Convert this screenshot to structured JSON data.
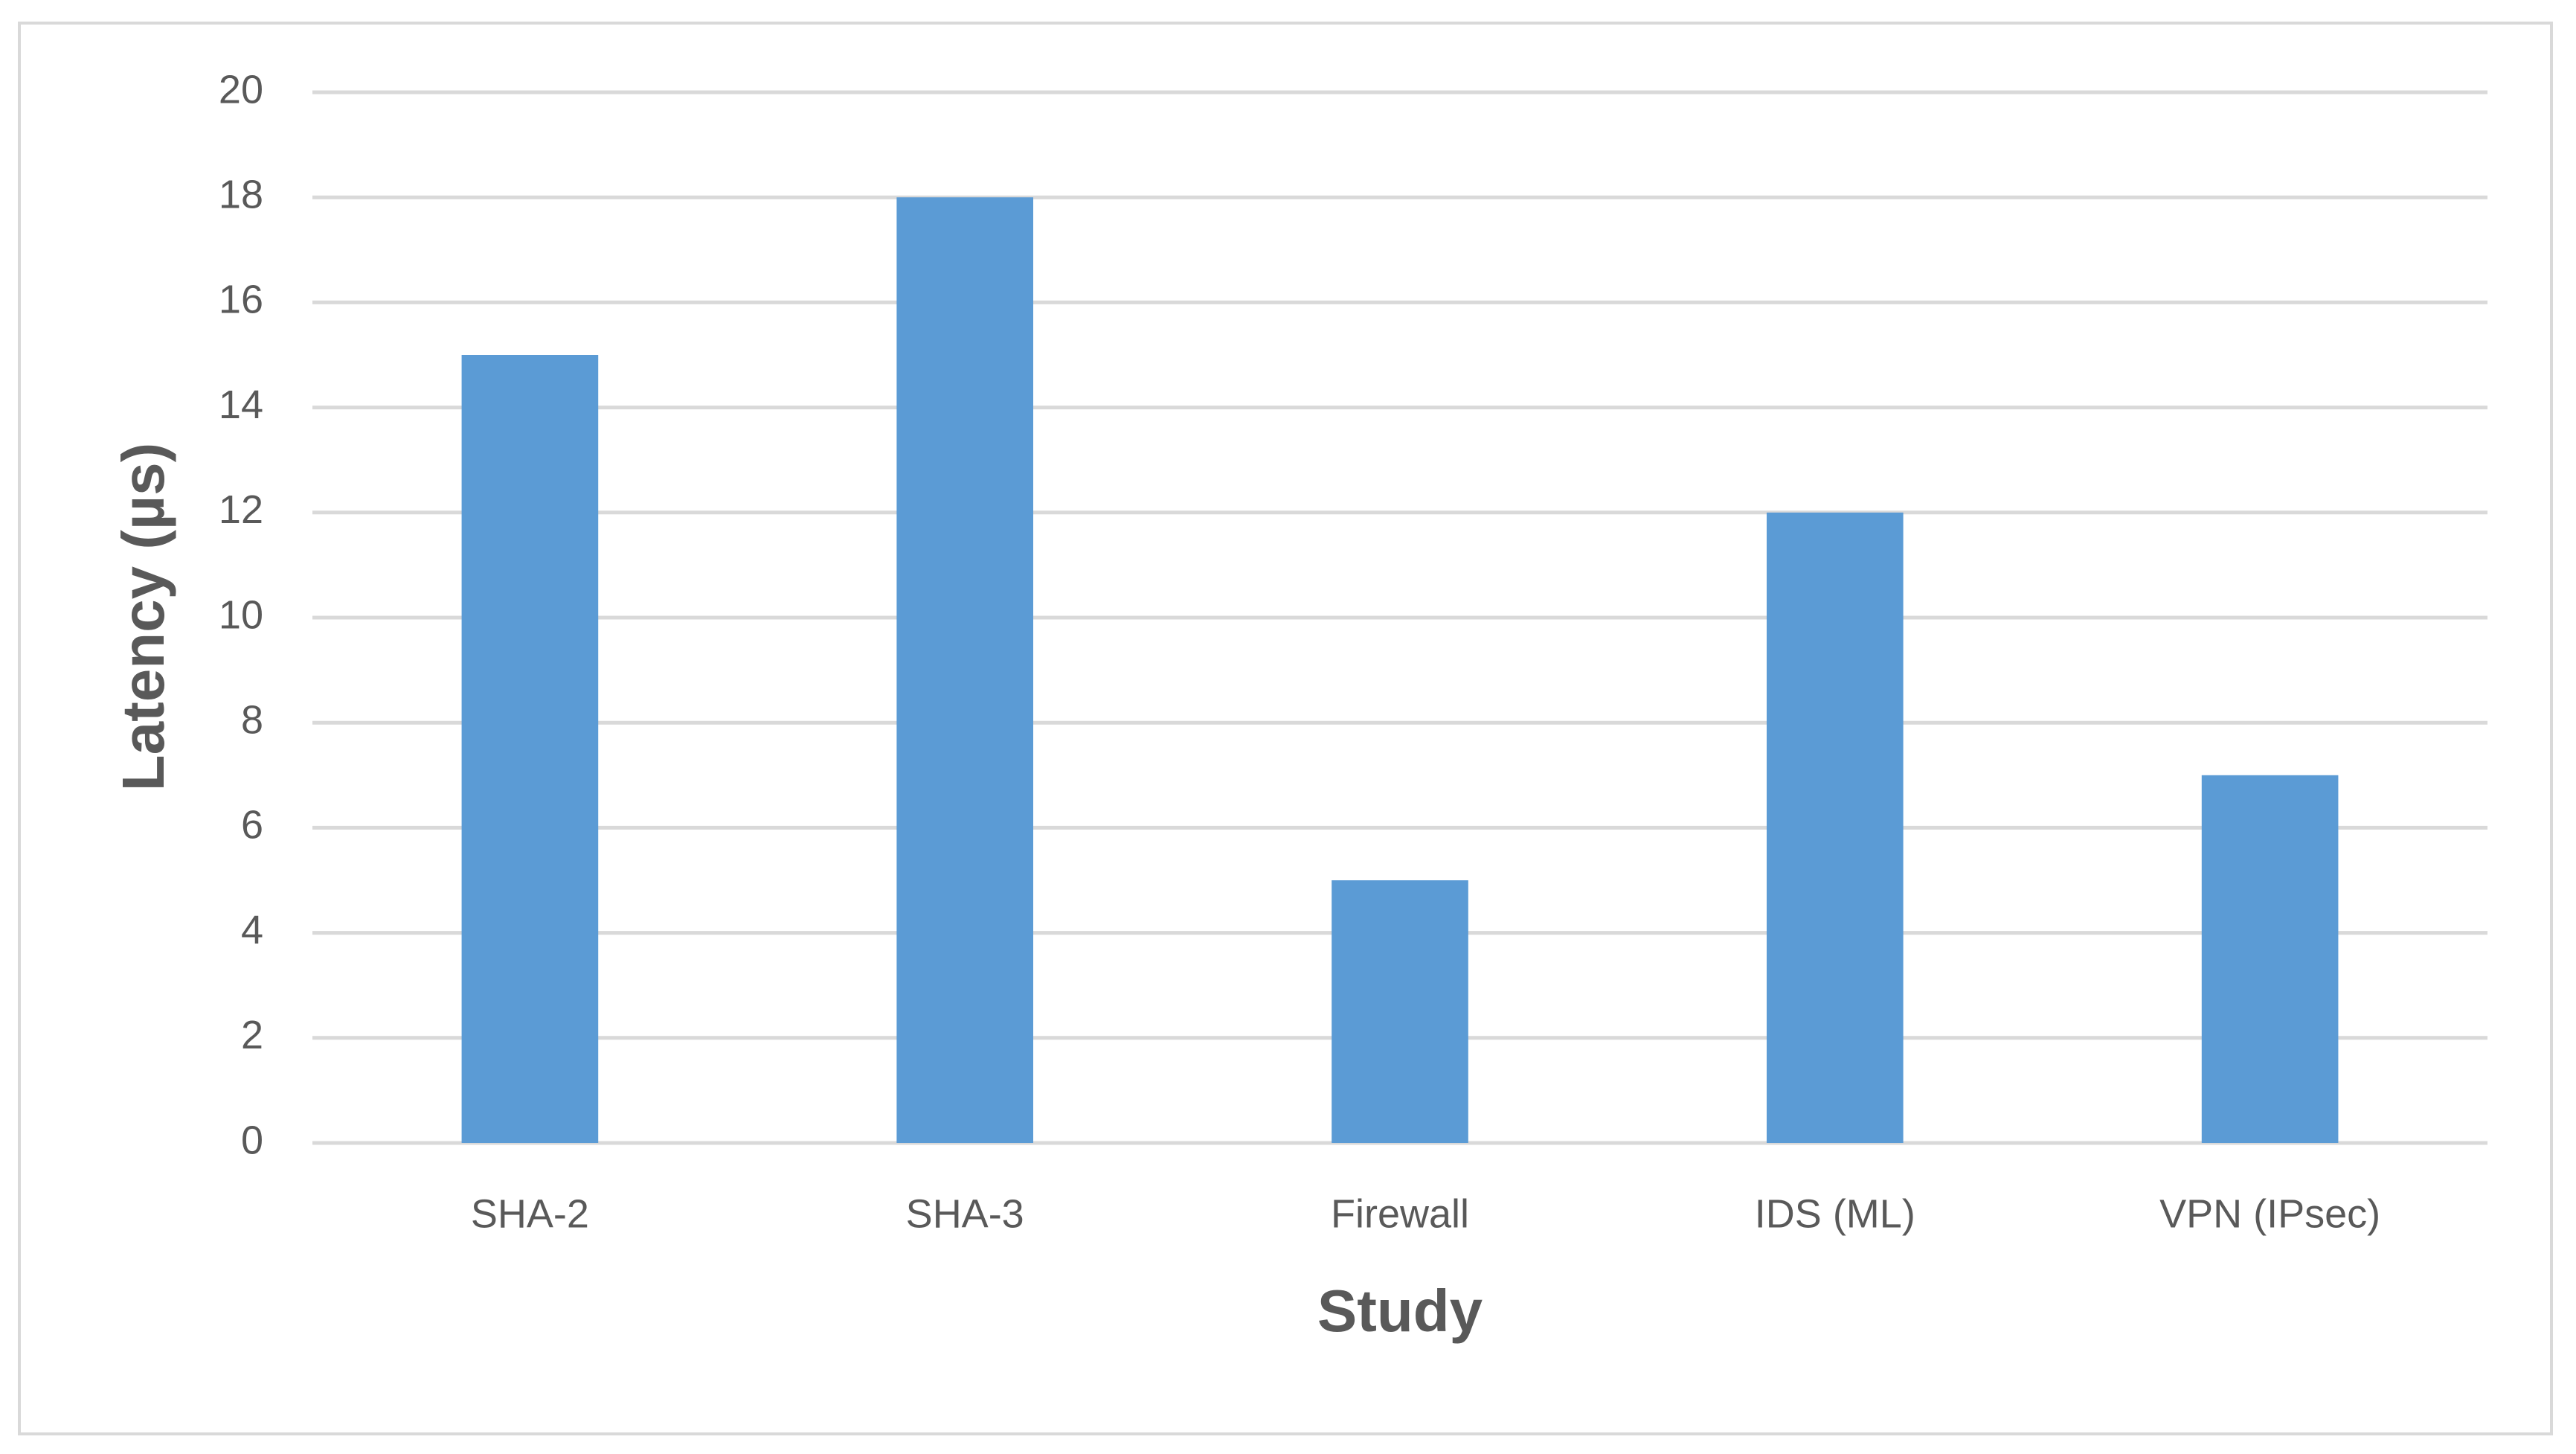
{
  "chart_data": {
    "type": "bar",
    "x_label": "Study",
    "y_label": "Latency (µs)",
    "categories": [
      "SHA-2",
      "SHA-3",
      "Firewall",
      "IDS (ML)",
      "VPN (IPsec)"
    ],
    "values": [
      15,
      18,
      5,
      12,
      7
    ],
    "color": "#5b9bd5",
    "ylim": [
      0,
      20
    ],
    "yticks": [
      0,
      2,
      4,
      6,
      8,
      10,
      12,
      14,
      16,
      18,
      20
    ],
    "grid": true
  }
}
